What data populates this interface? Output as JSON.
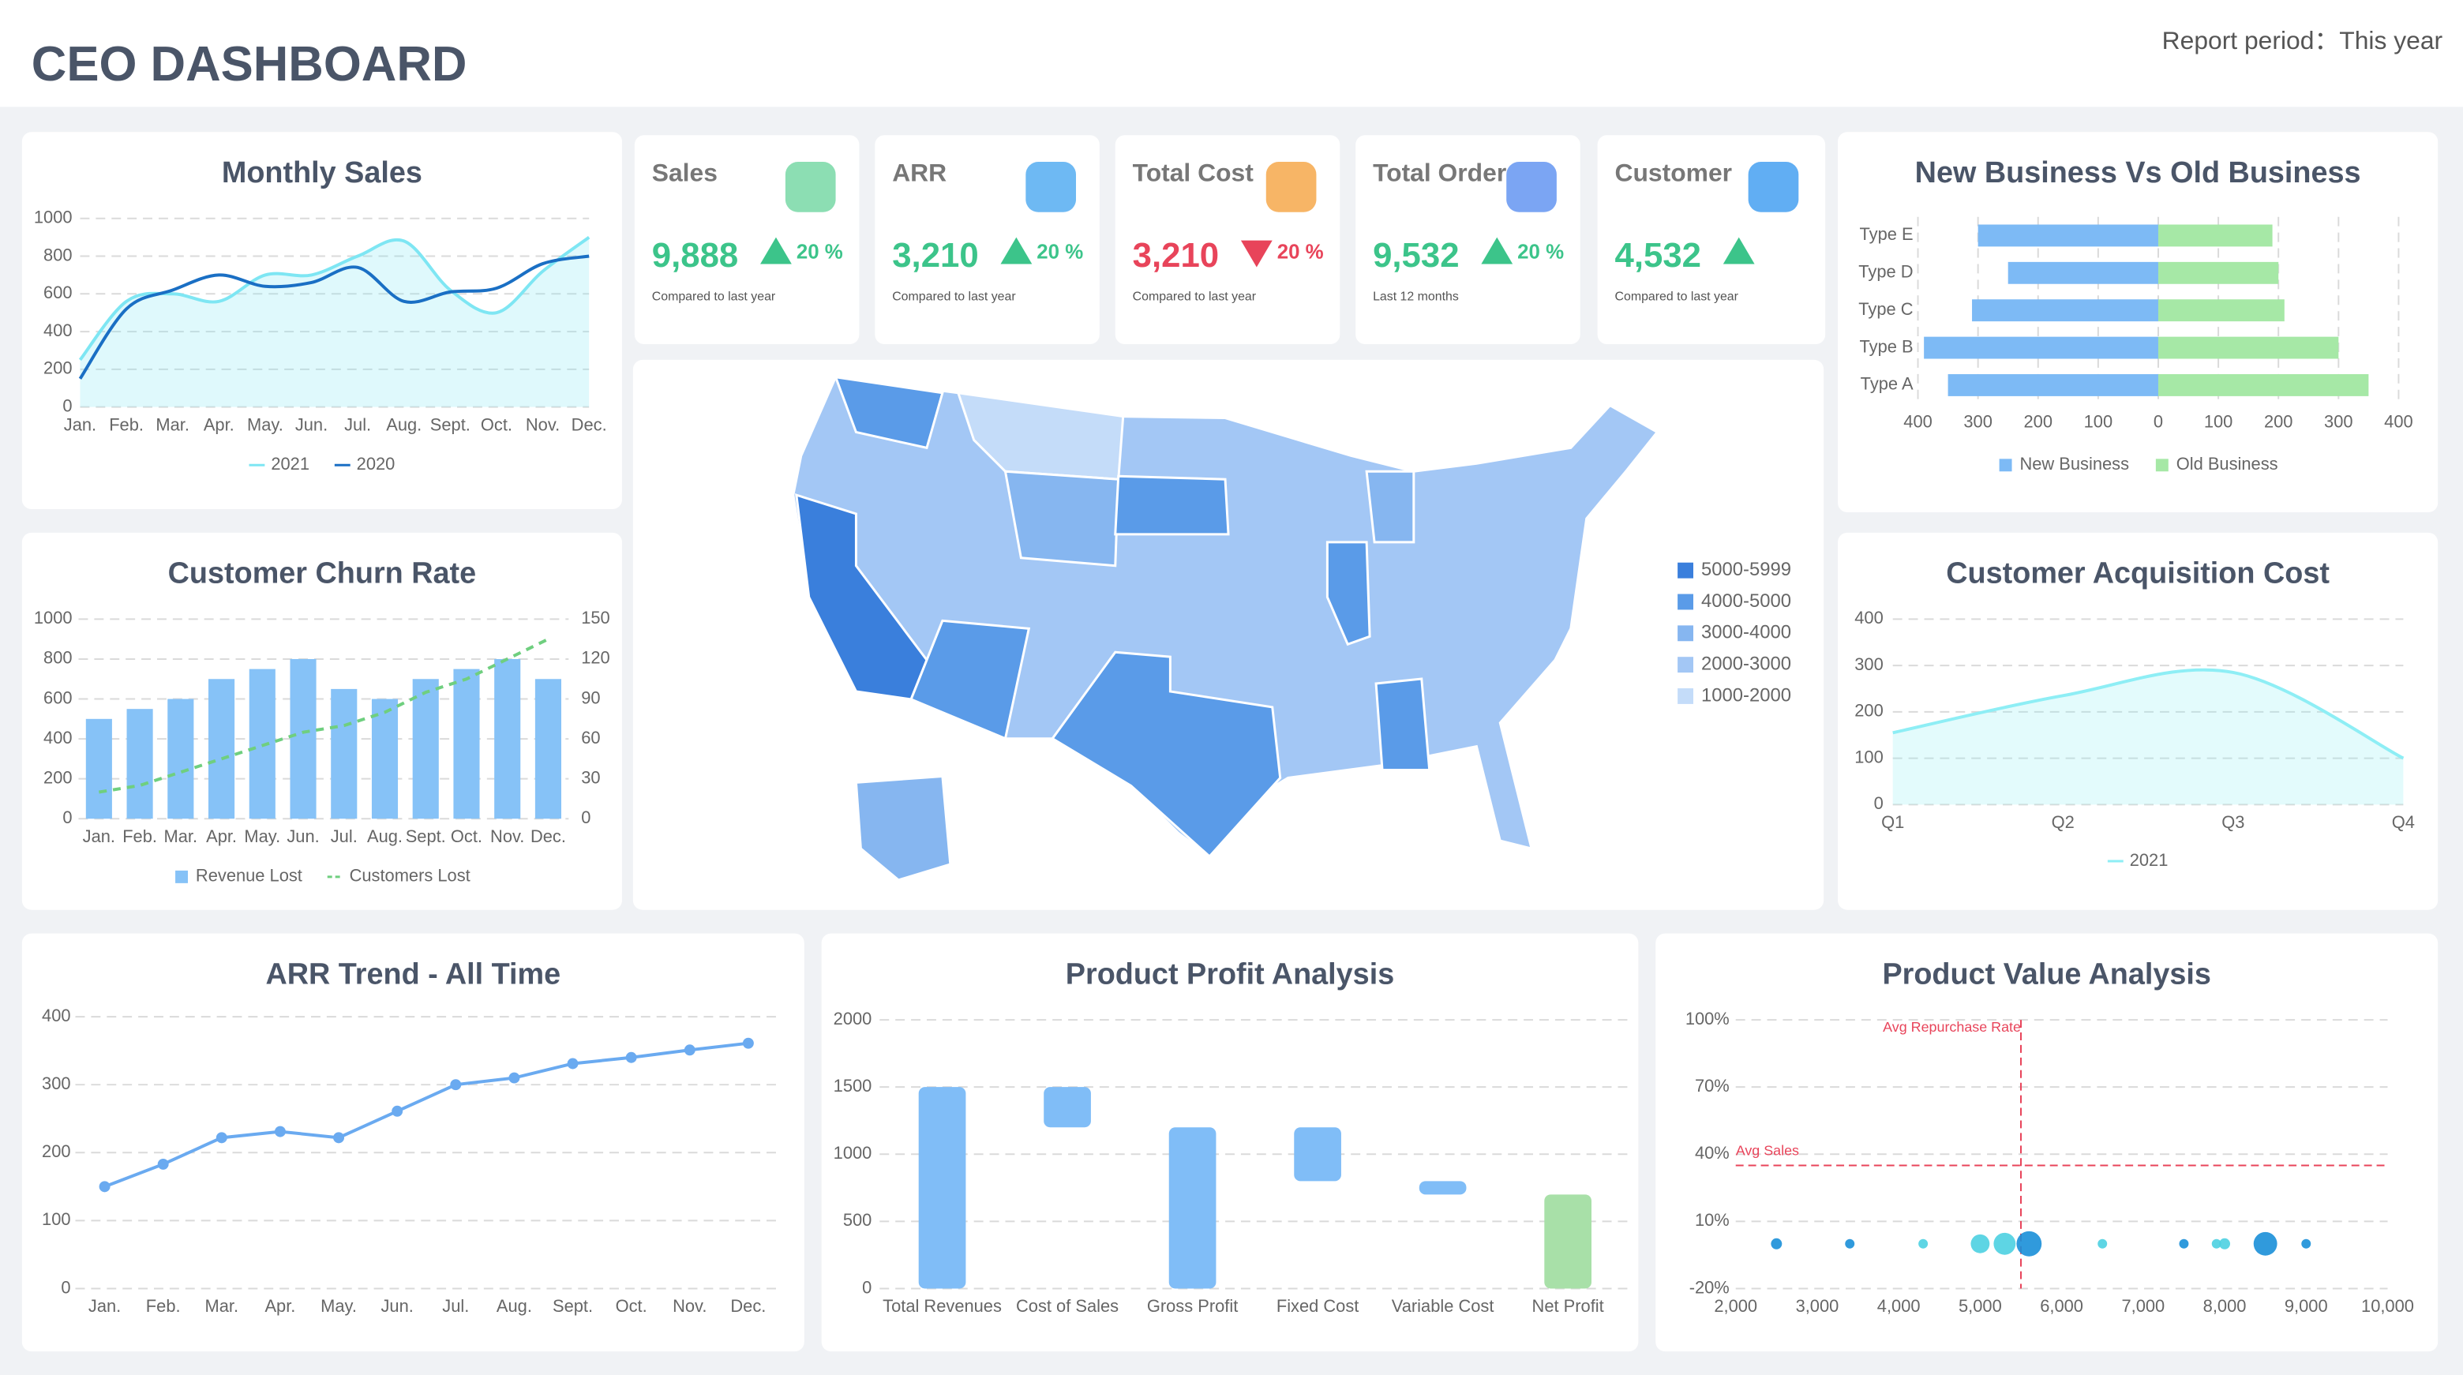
{
  "header": {
    "title": "CEO DASHBOARD",
    "report_period": "Report period：This year"
  },
  "kpis": [
    {
      "title": "Sales",
      "value": "9,888",
      "change": "20 %",
      "direction": "up",
      "note": "Compared to last year"
    },
    {
      "title": "ARR",
      "value": "3,210",
      "change": "20 %",
      "direction": "up",
      "note": "Compared to last year"
    },
    {
      "title": "Total Cost",
      "value": "3,210",
      "change": "20 %",
      "direction": "down",
      "note": "Compared to last year"
    },
    {
      "title": "Total Order",
      "value": "9,532",
      "change": "20 %",
      "direction": "up",
      "note": "Last 12 months"
    },
    {
      "title": "Customer",
      "value": "4,532",
      "direction": "up",
      "note": "Compared to last year"
    }
  ],
  "chart_data": [
    {
      "type": "line",
      "title": "Monthly Sales",
      "smooth": true,
      "grid": true,
      "legend": "bottom",
      "categories": [
        "Jan.",
        "Feb.",
        "Mar.",
        "Apr.",
        "May.",
        "Jun.",
        "Jul.",
        "Aug.",
        "Sept.",
        "Oct.",
        "Nov.",
        "Dec."
      ],
      "ylim": [
        0,
        1000
      ],
      "yticks": [
        0,
        200,
        400,
        600,
        800,
        1000
      ],
      "series": [
        {
          "name": "2021",
          "color": "#7ee6f3",
          "area": true,
          "values": [
            250,
            560,
            600,
            560,
            700,
            700,
            800,
            880,
            620,
            500,
            720,
            900
          ]
        },
        {
          "name": "2020",
          "color": "#1a6fc4",
          "values": [
            150,
            520,
            620,
            700,
            640,
            660,
            740,
            560,
            610,
            630,
            760,
            800
          ]
        }
      ]
    },
    {
      "type": "bar-line",
      "title": "Customer Churn Rate",
      "grid": true,
      "legend": "bottom",
      "categories": [
        "Jan.",
        "Feb.",
        "Mar.",
        "Apr.",
        "May.",
        "Jun.",
        "Jul.",
        "Aug.",
        "Sept.",
        "Oct.",
        "Nov.",
        "Dec."
      ],
      "ylim": [
        0,
        1000
      ],
      "yticks": [
        0,
        200,
        400,
        600,
        800,
        1000
      ],
      "y2lim": [
        0,
        150
      ],
      "y2ticks": [
        0,
        30,
        60,
        90,
        120,
        150
      ],
      "series": [
        {
          "name": "Revenue Lost",
          "type": "bar",
          "color": "#86c2f7",
          "values": [
            500,
            550,
            600,
            700,
            750,
            800,
            650,
            600,
            700,
            750,
            800,
            700
          ]
        },
        {
          "name": "Customers Lost",
          "type": "line",
          "axis": "y2",
          "dashed": true,
          "color": "#6fcf7f",
          "values": [
            20,
            25,
            35,
            45,
            55,
            65,
            70,
            80,
            95,
            105,
            120,
            135
          ]
        }
      ]
    },
    {
      "type": "map",
      "legend": [
        {
          "label": "5000-5999",
          "color": "#3a7fdc"
        },
        {
          "label": "4000-5000",
          "color": "#5a9be8"
        },
        {
          "label": "3000-4000",
          "color": "#86b6f0"
        },
        {
          "label": "2000-3000",
          "color": "#a3c7f5"
        },
        {
          "label": "1000-2000",
          "color": "#c4dcf9"
        }
      ]
    },
    {
      "type": "diverging-bar",
      "title": "New Business Vs Old Business",
      "grid": true,
      "legend": "bottom",
      "categories": [
        "Type E",
        "Type D",
        "Type C",
        "Type B",
        "Type A"
      ],
      "xlim": [
        -400,
        400
      ],
      "xticks": [
        {
          "value": -400,
          "label": "400"
        },
        {
          "value": -300,
          "label": "300"
        },
        {
          "value": -200,
          "label": "200"
        },
        {
          "value": -100,
          "label": "100"
        },
        0,
        100,
        200,
        300,
        400
      ],
      "series": [
        {
          "name": "New Business",
          "side": "left",
          "color": "#7dbaf5",
          "values": [
            300,
            250,
            310,
            390,
            350
          ]
        },
        {
          "name": "Old Business",
          "side": "right",
          "color": "#a6e8a6",
          "values": [
            190,
            200,
            210,
            300,
            350
          ]
        }
      ]
    },
    {
      "type": "line",
      "title": "Customer Acquisition Cost",
      "smooth": true,
      "grid": true,
      "legend": "bottom",
      "categories": [
        "Q1",
        "Q2",
        "Q3",
        "Q4"
      ],
      "ylim": [
        0,
        400
      ],
      "yticks": [
        0,
        100,
        200,
        300,
        400
      ],
      "series": [
        {
          "name": "2021",
          "color": "#8eeef5",
          "area": true,
          "values": [
            155,
            235,
            285,
            100
          ]
        }
      ]
    },
    {
      "type": "line",
      "title": "ARR Trend - All Time",
      "grid": true,
      "markers": true,
      "color": "#6aaaf0",
      "categories": [
        "Jan.",
        "Feb.",
        "Mar.",
        "Apr.",
        "May.",
        "Jun.",
        "Jul.",
        "Aug.",
        "Sept.",
        "Oct.",
        "Nov.",
        "Dec."
      ],
      "ylim": [
        0,
        400
      ],
      "yticks": [
        0,
        100,
        200,
        300,
        400
      ],
      "values": [
        150,
        183,
        222,
        231,
        222,
        261,
        300,
        310,
        331,
        340,
        351,
        361
      ]
    },
    {
      "type": "waterfall",
      "title": "Product Profit Analysis",
      "grid": true,
      "categories": [
        "Total Revenues",
        "Cost of Sales",
        "Gross Profit",
        "Fixed Cost",
        "Variable Cost",
        "Net Profit"
      ],
      "measures": [
        "total",
        "decrease",
        "total",
        "decrease",
        "decrease",
        "total"
      ],
      "values": [
        1500,
        300,
        1200,
        400,
        100,
        700
      ],
      "colors": [
        "#80bdf7",
        "#80bdf7",
        "#80bdf7",
        "#80bdf7",
        "#80bdf7",
        "#a8e0a8"
      ],
      "ylim": [
        0,
        2000
      ],
      "yticks": [
        0,
        500,
        1000,
        1500,
        2000
      ]
    },
    {
      "type": "scatter",
      "title": "Product Value Analysis",
      "grid": true,
      "x": [
        2500,
        3400,
        4300,
        5000,
        5300,
        5600,
        6500,
        7500,
        7900,
        8000,
        8500,
        9000
      ],
      "y": [
        0,
        0,
        0,
        0,
        0,
        0,
        0,
        0,
        0,
        0,
        0,
        0
      ],
      "sizes": [
        7,
        6,
        6,
        12,
        14,
        16,
        6,
        6,
        6,
        7,
        15,
        6
      ],
      "colors": [
        "#1a8fd8",
        "#1a8fd8",
        "#4dd0e1",
        "#4dd0e1",
        "#4dd0e1",
        "#1a8fd8",
        "#4dd0e1",
        "#1a8fd8",
        "#4dd0e1",
        "#4dd0e1",
        "#1a8fd8",
        "#1a8fd8"
      ],
      "xlim": [
        2000,
        10000
      ],
      "xticks": [
        {
          "value": 2000,
          "label": "2,000"
        },
        {
          "value": 3000,
          "label": "3,000"
        },
        {
          "value": 4000,
          "label": "4,000"
        },
        {
          "value": 5000,
          "label": "5,000"
        },
        {
          "value": 6000,
          "label": "6,000"
        },
        {
          "value": 7000,
          "label": "7,000"
        },
        {
          "value": 8000,
          "label": "8,000"
        },
        {
          "value": 9000,
          "label": "9,000"
        },
        {
          "value": 10000,
          "label": "10,000"
        }
      ],
      "ylim": [
        -20,
        100
      ],
      "yticks": [
        {
          "value": -20,
          "label": "-20%"
        },
        {
          "value": 10,
          "label": "10%"
        },
        {
          "value": 40,
          "label": "40%"
        },
        {
          "value": 70,
          "label": "70%"
        },
        {
          "value": 100,
          "label": "100%"
        }
      ],
      "reference_lines": [
        {
          "label": "Avg Repurchase Rate",
          "x": 5500
        },
        {
          "label": "Avg Sales",
          "y": 35
        }
      ],
      "reference_color": "#e8445a"
    }
  ]
}
